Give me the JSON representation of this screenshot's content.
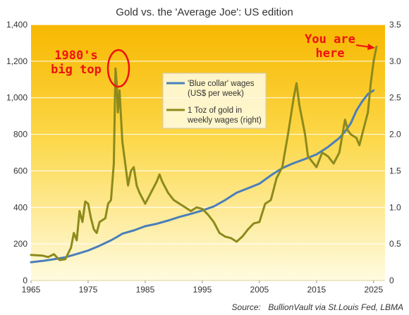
{
  "chart_data": {
    "type": "line",
    "title": "Gold vs. the 'Average Joe': US edition",
    "source_label": "Source:",
    "source_text": "BullionVault via St.Louis Fed, LBMA",
    "x_range": [
      1965,
      2027
    ],
    "x_ticks": [
      "1965",
      "1975",
      "1985",
      "1995",
      "2005",
      "2015",
      "2025"
    ],
    "y_left_range": [
      0,
      1400
    ],
    "y_left_ticks": [
      "0",
      "200",
      "400",
      "600",
      "800",
      "1,000",
      "1,200",
      "1,400"
    ],
    "y_right_range": [
      0,
      3.5
    ],
    "y_right_ticks": [
      "0",
      "0.5",
      "1.0",
      "1.5",
      "2.0",
      "2.5",
      "3.0",
      "3.5"
    ],
    "grid": true,
    "legend_position": "center",
    "series": [
      {
        "name": "'Blue collar' wages (US$ per week)",
        "legend_lines": [
          "'Blue collar' wages",
          "(US$ per week)"
        ],
        "axis": "left",
        "color": "#4a7ebb",
        "x": [
          1965,
          1967,
          1969,
          1971,
          1973,
          1975,
          1977,
          1979,
          1980,
          1981,
          1983,
          1985,
          1987,
          1989,
          1991,
          1993,
          1995,
          1997,
          1999,
          2001,
          2003,
          2005,
          2007,
          2009,
          2011,
          2013,
          2015,
          2017,
          2019,
          2020,
          2021,
          2022,
          2023,
          2024,
          2025
        ],
        "values": [
          100,
          107,
          116,
          127,
          145,
          164,
          190,
          220,
          237,
          256,
          274,
          297,
          310,
          328,
          348,
          365,
          383,
          405,
          440,
          480,
          505,
          530,
          575,
          615,
          642,
          665,
          690,
          730,
          780,
          815,
          860,
          930,
          980,
          1020,
          1040
        ]
      },
      {
        "name": "1 Toz of gold in weekly wages (right)",
        "legend_lines": [
          "1 Toz of gold in",
          "weekly wages (right)"
        ],
        "axis": "right",
        "color": "#8c8a1c",
        "x": [
          1965,
          1967,
          1968,
          1969,
          1970,
          1971,
          1972,
          1972.5,
          1973,
          1973.5,
          1974,
          1974.5,
          1975,
          1975.5,
          1976,
          1976.5,
          1977,
          1978,
          1978.5,
          1979,
          1979.5,
          1979.8,
          1980,
          1980.2,
          1980.5,
          1981,
          1981.5,
          1982,
          1982.5,
          1983,
          1983.5,
          1984,
          1985,
          1986,
          1987,
          1987.5,
          1988,
          1989,
          1990,
          1991,
          1992,
          1993,
          1994,
          1995,
          1996,
          1997,
          1998,
          1999,
          2000,
          2001,
          2002,
          2003,
          2004,
          2005,
          2006,
          2007,
          2008,
          2009,
          2010,
          2011,
          2011.5,
          2012,
          2013,
          2013.5,
          2014,
          2015,
          2016,
          2017,
          2018,
          2019,
          2020,
          2020.5,
          2021,
          2022,
          2022.5,
          2023,
          2024,
          2024.5,
          2025,
          2025.5
        ],
        "values": [
          0.35,
          0.34,
          0.32,
          0.36,
          0.28,
          0.29,
          0.45,
          0.65,
          0.55,
          0.95,
          0.8,
          1.08,
          1.05,
          0.85,
          0.7,
          0.65,
          0.8,
          0.85,
          1.05,
          1.1,
          1.6,
          2.9,
          2.7,
          2.3,
          2.6,
          1.9,
          1.6,
          1.3,
          1.5,
          1.55,
          1.3,
          1.2,
          1.05,
          1.2,
          1.35,
          1.45,
          1.35,
          1.2,
          1.1,
          1.05,
          1.0,
          0.95,
          1.0,
          0.98,
          0.9,
          0.8,
          0.65,
          0.6,
          0.58,
          0.53,
          0.6,
          0.7,
          0.78,
          0.8,
          1.05,
          1.1,
          1.4,
          1.55,
          2.0,
          2.5,
          2.7,
          2.4,
          2.0,
          1.7,
          1.65,
          1.55,
          1.75,
          1.7,
          1.6,
          1.75,
          2.2,
          2.05,
          2.0,
          1.95,
          1.85,
          2.0,
          2.3,
          2.7,
          3.0,
          3.2
        ]
      }
    ],
    "annotations": [
      {
        "lines": [
          "1980's",
          "big top"
        ],
        "color": "#ee1111"
      },
      {
        "lines": [
          "You are",
          "here"
        ],
        "color": "#ee1111"
      }
    ]
  }
}
